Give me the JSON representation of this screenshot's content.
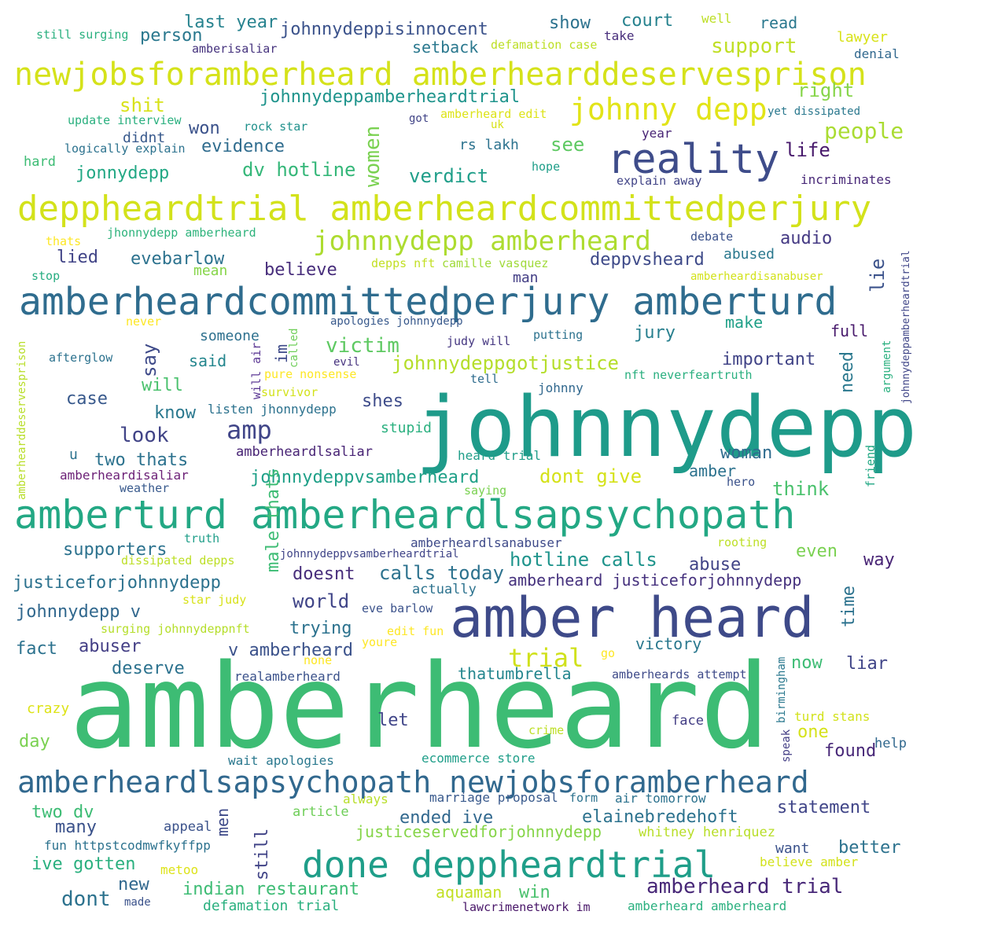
{
  "words": [
    {
      "text": "amberheard",
      "color": "#3dbc74"
    },
    {
      "text": "johnnydepp",
      "color": "#1e9b8a"
    },
    {
      "text": "amber heard",
      "color": "#3e4a89"
    },
    {
      "text": "amberheardcommittedperjury amberturd",
      "color": "#2f6c8e"
    },
    {
      "text": "amberturd amberheardlsapsychopath",
      "color": "#23a884"
    },
    {
      "text": "deppheardtrial amberheardcommittedperjury",
      "color": "#d3e21b"
    },
    {
      "text": "newjobsforamberheard amberhearddeservesprison",
      "color": "#d5e21a"
    },
    {
      "text": "amberheardlsapsychopath newjobsforamberheard",
      "color": "#31688e"
    },
    {
      "text": "done deppheardtrial",
      "color": "#1f9e89"
    },
    {
      "text": "reality",
      "color": "#3e4c8a"
    },
    {
      "text": "johnny depp",
      "color": "#e2e418"
    },
    {
      "text": "johnnydepp amberheard",
      "color": "#addc30"
    },
    {
      "text": "trial",
      "color": "#d0e11c"
    },
    {
      "text": "people",
      "color": "#aadc32"
    },
    {
      "text": "amp",
      "color": "#404588"
    },
    {
      "text": "victim",
      "color": "#5ec962"
    },
    {
      "text": "johnnydeppgotjustice",
      "color": "#b5de2b"
    },
    {
      "text": "johnnydeppamberheardtrial",
      "color": "#1f948c"
    },
    {
      "text": "johnnydeppisinnocent",
      "color": "#3b528b"
    },
    {
      "text": "last year",
      "color": "#26828e"
    },
    {
      "text": "person",
      "color": "#2a788e"
    },
    {
      "text": "show",
      "color": "#2c728e"
    },
    {
      "text": "court",
      "color": "#26828e"
    },
    {
      "text": "read",
      "color": "#2a788e"
    },
    {
      "text": "well",
      "color": "#bddf26"
    },
    {
      "text": "lawyer",
      "color": "#d8e219"
    },
    {
      "text": "denial",
      "color": "#31688e"
    },
    {
      "text": "still surging",
      "color": "#2ab07f"
    },
    {
      "text": "amberisaliar",
      "color": "#46337e"
    },
    {
      "text": "setback",
      "color": "#2a788e"
    },
    {
      "text": "defamation case",
      "color": "#bddf26"
    },
    {
      "text": "take",
      "color": "#472d7b"
    },
    {
      "text": "support",
      "color": "#c0df25"
    },
    {
      "text": "right",
      "color": "#86d549"
    },
    {
      "text": "shit",
      "color": "#d8e219"
    },
    {
      "text": "update interview",
      "color": "#2ab07f"
    },
    {
      "text": "rock star",
      "color": "#21918c"
    },
    {
      "text": "got",
      "color": "#414487"
    },
    {
      "text": "amberheard edit",
      "color": "#dde318"
    },
    {
      "text": "uk",
      "color": "#d8e219"
    },
    {
      "text": "yet dissipated",
      "color": "#2a788e"
    },
    {
      "text": "didnt",
      "color": "#38598c"
    },
    {
      "text": "won",
      "color": "#3b528b"
    },
    {
      "text": "logically explain",
      "color": "#2c728e"
    },
    {
      "text": "evidence",
      "color": "#2f6c8e"
    },
    {
      "text": "women",
      "color": "#7ad151"
    },
    {
      "text": "rs lakh",
      "color": "#2c728e"
    },
    {
      "text": "see",
      "color": "#5ec962"
    },
    {
      "text": "year",
      "color": "#482475"
    },
    {
      "text": "life",
      "color": "#481a6c"
    },
    {
      "text": "hard",
      "color": "#3dbc74"
    },
    {
      "text": "jonnydepp",
      "color": "#22a884"
    },
    {
      "text": "dv hotline",
      "color": "#35b779"
    },
    {
      "text": "verdict",
      "color": "#1f9e89"
    },
    {
      "text": "hope",
      "color": "#1f9e89"
    },
    {
      "text": "explain away",
      "color": "#414487"
    },
    {
      "text": "incriminates",
      "color": "#482878"
    },
    {
      "text": "thats",
      "color": "#fde725"
    },
    {
      "text": "jhonnydepp amberheard",
      "color": "#2eb37c"
    },
    {
      "text": "debate",
      "color": "#3b528b"
    },
    {
      "text": "audio",
      "color": "#443983"
    },
    {
      "text": "lied",
      "color": "#414487"
    },
    {
      "text": "evebarlow",
      "color": "#2c728e"
    },
    {
      "text": "depps nft",
      "color": "#c2df23"
    },
    {
      "text": "camille vasquez",
      "color": "#a0da39"
    },
    {
      "text": "abused",
      "color": "#2a788e"
    },
    {
      "text": "deppvsheard",
      "color": "#3e4a89"
    },
    {
      "text": "stop",
      "color": "#27ad81"
    },
    {
      "text": "mean",
      "color": "#86d549"
    },
    {
      "text": "believe",
      "color": "#472d7b"
    },
    {
      "text": "man",
      "color": "#433e85"
    },
    {
      "text": "amberheardisanabuser",
      "color": "#d2e21b"
    },
    {
      "text": "lie",
      "color": "#3b528b"
    },
    {
      "text": "johnnydeppamberheardtrial",
      "color": "#404688"
    },
    {
      "text": "never",
      "color": "#fde725"
    },
    {
      "text": "apologies johnnydepp",
      "color": "#38598c"
    },
    {
      "text": "make",
      "color": "#1fa088"
    },
    {
      "text": "full",
      "color": "#481a6c"
    },
    {
      "text": "someone",
      "color": "#2d708e"
    },
    {
      "text": "judy will",
      "color": "#453781"
    },
    {
      "text": "putting",
      "color": "#2c728e"
    },
    {
      "text": "jury",
      "color": "#277f8e"
    },
    {
      "text": "say",
      "color": "#3e4a89"
    },
    {
      "text": "im",
      "color": "#3e4a89"
    },
    {
      "text": "called",
      "color": "#6ece58"
    },
    {
      "text": "will air",
      "color": "#5b3794"
    },
    {
      "text": "afterglow",
      "color": "#2c728e"
    },
    {
      "text": "said",
      "color": "#24868e"
    },
    {
      "text": "evil",
      "color": "#46327e"
    },
    {
      "text": "pure nonsense",
      "color": "#fde725"
    },
    {
      "text": "important",
      "color": "#414487"
    },
    {
      "text": "need",
      "color": "#2a788e"
    },
    {
      "text": "nft neverfeartruth",
      "color": "#29af7f"
    },
    {
      "text": "argument",
      "color": "#2ab07f"
    },
    {
      "text": "will",
      "color": "#4ac16d"
    },
    {
      "text": "survivor",
      "color": "#d2e21b"
    },
    {
      "text": "tell",
      "color": "#2f6c8e"
    },
    {
      "text": "johnny",
      "color": "#31688e"
    },
    {
      "text": "amberhearddeservesprison",
      "color": "#b8de29"
    },
    {
      "text": "case",
      "color": "#38598c"
    },
    {
      "text": "know",
      "color": "#2a788e"
    },
    {
      "text": "listen jhonnydepp",
      "color": "#2c728e"
    },
    {
      "text": "shes",
      "color": "#3e4c8a"
    },
    {
      "text": "stupid",
      "color": "#2ab07f"
    },
    {
      "text": "look",
      "color": "#414487"
    },
    {
      "text": "u",
      "color": "#2c728e"
    },
    {
      "text": "two thats",
      "color": "#2c728e"
    },
    {
      "text": "amberheardlsaliar",
      "color": "#482475"
    },
    {
      "text": "heard trial",
      "color": "#1f9e89"
    },
    {
      "text": "woman",
      "color": "#2f6c8e"
    },
    {
      "text": "friend",
      "color": "#23a884"
    },
    {
      "text": "amberheardisaliar",
      "color": "#6b1f76"
    },
    {
      "text": "weather",
      "color": "#38598c"
    },
    {
      "text": "johnnydeppvsamberheard",
      "color": "#1fa088"
    },
    {
      "text": "saying",
      "color": "#7ad151"
    },
    {
      "text": "dont give",
      "color": "#d5e21a"
    },
    {
      "text": "amber",
      "color": "#2c728e"
    },
    {
      "text": "hero",
      "color": "#3b528b"
    },
    {
      "text": "think",
      "color": "#4ac16d"
    },
    {
      "text": "truth",
      "color": "#1f9e89"
    },
    {
      "text": "supporters",
      "color": "#2c728e"
    },
    {
      "text": "dissipated depps",
      "color": "#bddf26"
    },
    {
      "text": "male thats",
      "color": "#3dbc74"
    },
    {
      "text": "amberheardlsanabuser",
      "color": "#3e4a89"
    },
    {
      "text": "johnnydeppvsamberheardtrial",
      "color": "#404588"
    },
    {
      "text": "rooting",
      "color": "#bddf26"
    },
    {
      "text": "even",
      "color": "#7ad151"
    },
    {
      "text": "way",
      "color": "#482475"
    },
    {
      "text": "justiceforjohnnydepp",
      "color": "#2c728e"
    },
    {
      "text": "doesnt",
      "color": "#472d7b"
    },
    {
      "text": "calls today",
      "color": "#2c728e"
    },
    {
      "text": "hotline calls",
      "color": "#1f948c"
    },
    {
      "text": "abuse",
      "color": "#414487"
    },
    {
      "text": "amberheard justiceforjohnnydepp",
      "color": "#46327e"
    },
    {
      "text": "actually",
      "color": "#2c728e"
    },
    {
      "text": "star judy",
      "color": "#d8e219"
    },
    {
      "text": "time",
      "color": "#2c728e"
    },
    {
      "text": "johnnydepp v",
      "color": "#31688e"
    },
    {
      "text": "world",
      "color": "#404588"
    },
    {
      "text": "eve barlow",
      "color": "#3b528b"
    },
    {
      "text": "surging johnnydeppnft",
      "color": "#b5de2b"
    },
    {
      "text": "trying",
      "color": "#2c728e"
    },
    {
      "text": "edit fun",
      "color": "#fde725"
    },
    {
      "text": "fact",
      "color": "#2c728e"
    },
    {
      "text": "abuser",
      "color": "#433e85"
    },
    {
      "text": "v amberheard",
      "color": "#3b528b"
    },
    {
      "text": "youre",
      "color": "#fde725"
    },
    {
      "text": "victory",
      "color": "#2a788e"
    },
    {
      "text": "go",
      "color": "#fde725"
    },
    {
      "text": "birmingham",
      "color": "#2a788e"
    },
    {
      "text": "now",
      "color": "#3dbc74"
    },
    {
      "text": "liar",
      "color": "#404588"
    },
    {
      "text": "none",
      "color": "#fde725"
    },
    {
      "text": "deserve",
      "color": "#2c728e"
    },
    {
      "text": "realamberheard",
      "color": "#3b528b"
    },
    {
      "text": "thatumbrella",
      "color": "#24868e"
    },
    {
      "text": "amberheards attempt",
      "color": "#3e4a89"
    },
    {
      "text": "crazy",
      "color": "#dde318"
    },
    {
      "text": "let",
      "color": "#404588"
    },
    {
      "text": "face",
      "color": "#433e85"
    },
    {
      "text": "crime",
      "color": "#bddf26"
    },
    {
      "text": "turd stans",
      "color": "#d2e21b"
    },
    {
      "text": "one",
      "color": "#d5e21a"
    },
    {
      "text": "day",
      "color": "#7ad151"
    },
    {
      "text": "speak",
      "color": "#433e85"
    },
    {
      "text": "found",
      "color": "#482878"
    },
    {
      "text": "help",
      "color": "#31688e"
    },
    {
      "text": "wait apologies",
      "color": "#2a788e"
    },
    {
      "text": "ecommerce store",
      "color": "#1f9e89"
    },
    {
      "text": "always",
      "color": "#b8de29"
    },
    {
      "text": "marriage proposal",
      "color": "#38598c"
    },
    {
      "text": "form",
      "color": "#2c728e"
    },
    {
      "text": "air tomorrow",
      "color": "#2c728e"
    },
    {
      "text": "two dv",
      "color": "#3dbc74"
    },
    {
      "text": "article",
      "color": "#6ece58"
    },
    {
      "text": "ended ive",
      "color": "#31688e"
    },
    {
      "text": "elainebredehoft",
      "color": "#2c728e"
    },
    {
      "text": "statement",
      "color": "#404588"
    },
    {
      "text": "many",
      "color": "#3b528b"
    },
    {
      "text": "appeal",
      "color": "#3b528b"
    },
    {
      "text": "men",
      "color": "#3e4a89"
    },
    {
      "text": "justiceservedforjohnnydepp",
      "color": "#86d549"
    },
    {
      "text": "whitney henriquez",
      "color": "#b8de29"
    },
    {
      "text": "fun httpstcodmwfkyffpp",
      "color": "#2c728e"
    },
    {
      "text": "still",
      "color": "#414487"
    },
    {
      "text": "want",
      "color": "#3b528b"
    },
    {
      "text": "better",
      "color": "#2c728e"
    },
    {
      "text": "ive gotten",
      "color": "#2ab07f"
    },
    {
      "text": "metoo",
      "color": "#dde318"
    },
    {
      "text": "believe amber",
      "color": "#d2e21b"
    },
    {
      "text": "new",
      "color": "#31688e"
    },
    {
      "text": "indian restaurant",
      "color": "#3dbc74"
    },
    {
      "text": "aquaman",
      "color": "#c2df23"
    },
    {
      "text": "win",
      "color": "#4ac16d"
    },
    {
      "text": "amberheard trial",
      "color": "#482878"
    },
    {
      "text": "dont",
      "color": "#2c728e"
    },
    {
      "text": "made",
      "color": "#3b528b"
    },
    {
      "text": "defamation trial",
      "color": "#2ab07f"
    },
    {
      "text": "lawcrimenetwork im",
      "color": "#481668"
    },
    {
      "text": "amberheard amberheard",
      "color": "#2ab07f"
    }
  ]
}
